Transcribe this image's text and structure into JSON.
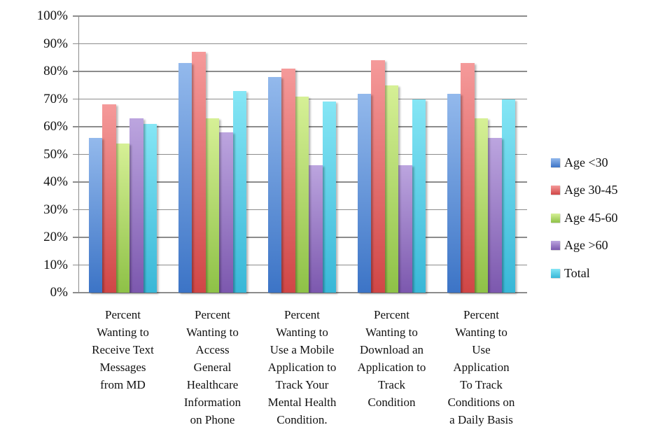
{
  "chart_data": {
    "type": "bar",
    "title": "",
    "xlabel": "",
    "ylabel": "",
    "ylim": [
      0,
      100
    ],
    "y_tick_step": 10,
    "y_tick_labels": [
      "0%",
      "10%",
      "20%",
      "30%",
      "40%",
      "50%",
      "60%",
      "70%",
      "80%",
      "90%",
      "100%"
    ],
    "grid": true,
    "legend_position": "right",
    "categories": [
      "Percent\nWanting to\nReceive Text\nMessages\nfrom MD",
      "Percent\nWanting to\nAccess\nGeneral\nHealthcare\nInformation\non Phone",
      "Percent\nWanting to\nUse a Mobile\nApplication to\nTrack Your\nMental Health\nCondition.",
      "Percent\nWanting to\nDownload an\nApplication to\nTrack\nCondition",
      "Percent\nWanting to\nUse\nApplication\nTo Track\nConditions on\na Daily Basis"
    ],
    "series": [
      {
        "name": "Age <30",
        "values": [
          56,
          83,
          78,
          72,
          72
        ],
        "color_top": "#93B9EC",
        "color_bottom": "#3C74C6"
      },
      {
        "name": "Age 30-45",
        "values": [
          68,
          87,
          81,
          84,
          83
        ],
        "color_top": "#F59A9A",
        "color_bottom": "#D04646"
      },
      {
        "name": "Age 45-60",
        "values": [
          54,
          63,
          71,
          75,
          63
        ],
        "color_top": "#D6F096",
        "color_bottom": "#8EC147"
      },
      {
        "name": "Age >60",
        "values": [
          63,
          58,
          46,
          46,
          56
        ],
        "color_top": "#BCA5DF",
        "color_bottom": "#7C58AE"
      },
      {
        "name": "Total",
        "values": [
          61,
          73,
          69,
          70,
          70
        ],
        "color_top": "#85E6F5",
        "color_bottom": "#38B7D7"
      }
    ]
  },
  "colors": {
    "gridline": "#8C8C8C",
    "axis": "#8C8C8C",
    "background": "#FFFFFF",
    "text": "#111111"
  }
}
